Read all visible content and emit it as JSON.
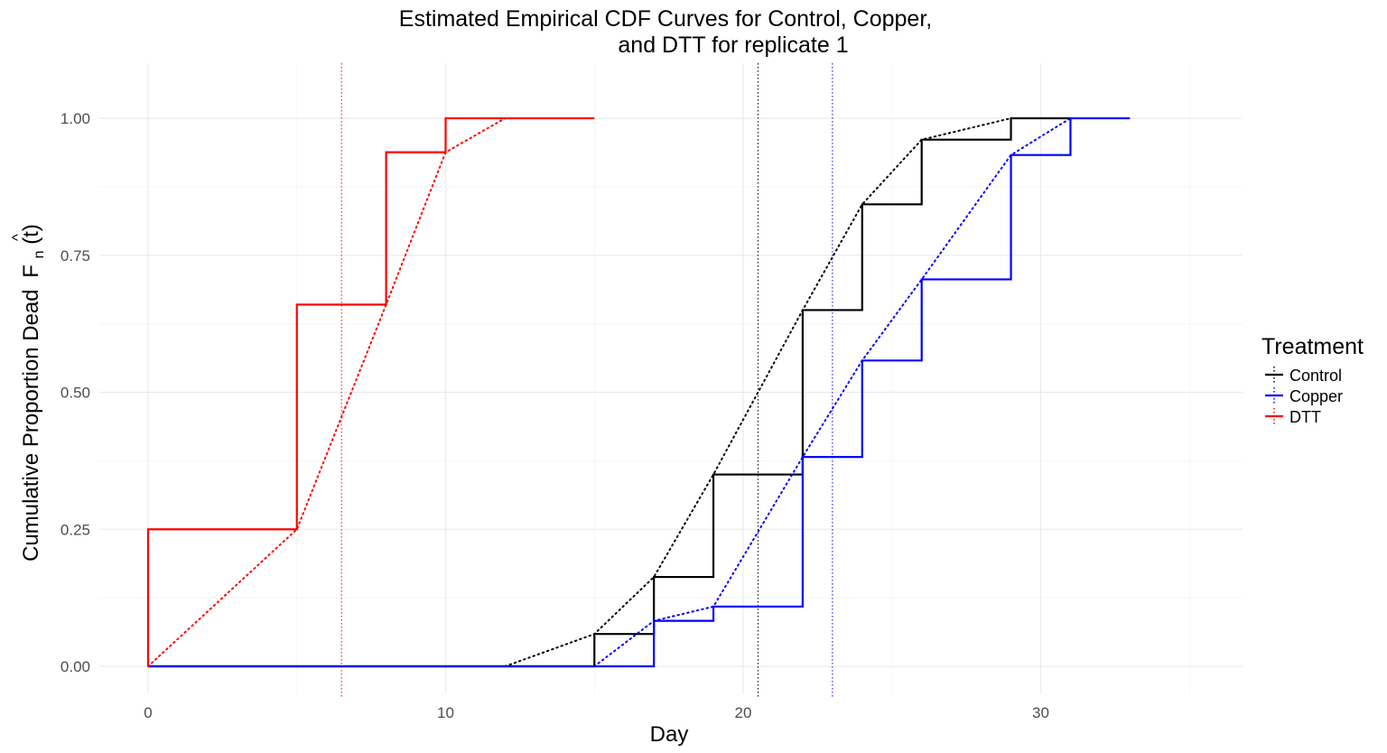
{
  "chart_data": {
    "type": "line",
    "title_line1": "Estimated Empirical CDF Curves for Control, Copper,",
    "title_line2": "and DTT for replicate 1",
    "xlabel": "Day",
    "ylabel_prefix": "Cumulative Proportion Dead",
    "ylabel_symbol": "F",
    "ylabel_hat": "^",
    "ylabel_sub": "n",
    "ylabel_suffix": "(t)",
    "xlim": [
      -1.5,
      36.5
    ],
    "ylim": [
      -0.05,
      1.05
    ],
    "x_ticks": [
      0,
      10,
      20,
      30
    ],
    "x_tick_labels": [
      "0",
      "10",
      "20",
      "30"
    ],
    "y_ticks": [
      0,
      0.25,
      0.5,
      0.75,
      1.0
    ],
    "y_tick_labels": [
      "0.00",
      "0.25",
      "0.50",
      "0.75",
      "1.00"
    ],
    "grid": true,
    "legend_position": "right",
    "legend_title": "Treatment",
    "series": [
      {
        "name": "Control",
        "color": "#000000",
        "step_x": [
          15,
          17,
          19,
          22,
          24,
          26,
          29,
          31
        ],
        "step_y": [
          0.0,
          0.059,
          0.163,
          0.35,
          0.65,
          0.843,
          0.961,
          1.0,
          1.0
        ],
        "dotted_x": [
          12,
          15,
          17,
          19,
          22,
          24,
          26,
          29,
          31
        ],
        "dotted_y": [
          0.0,
          0.059,
          0.163,
          0.35,
          0.65,
          0.843,
          0.961,
          1.0,
          1.0
        ],
        "vline": 20.5
      },
      {
        "name": "Copper",
        "color": "#0000ff",
        "step_x": [
          15,
          17,
          19,
          22,
          24,
          26,
          29,
          31,
          33
        ],
        "step_y": [
          0.0,
          0.0,
          0.083,
          0.109,
          0.382,
          0.558,
          0.706,
          0.933,
          1.0,
          1.0
        ],
        "dotted_x": [
          15,
          17,
          19,
          22,
          24,
          26,
          29,
          31
        ],
        "dotted_y": [
          0.0,
          0.083,
          0.109,
          0.382,
          0.558,
          0.706,
          0.933,
          1.0
        ],
        "vline": 23.0
      },
      {
        "name": "DTT",
        "color": "#ff0000",
        "step_x": [
          0,
          5,
          8,
          10,
          12,
          15
        ],
        "step_y": [
          0.0,
          0.25,
          0.66,
          0.938,
          1.0,
          1.0
        ],
        "dotted_x": [
          0,
          5,
          8,
          10,
          12
        ],
        "dotted_y": [
          0.0,
          0.25,
          0.66,
          0.938,
          1.0
        ],
        "vline": 6.5
      }
    ]
  }
}
